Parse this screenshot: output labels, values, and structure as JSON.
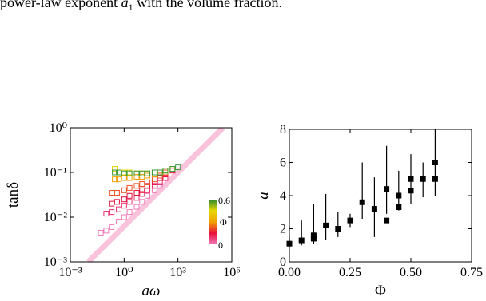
{
  "caption": {
    "lead": "power-law exponent ",
    "symbol": "a",
    "subscript": "1",
    "tail": " with the volume fraction."
  },
  "chart_data": [
    {
      "type": "scatter",
      "x_label": "aω",
      "y_label": "tanδ",
      "log_x": true,
      "log_y": true,
      "xlim": [
        0.001,
        1000000
      ],
      "ylim": [
        0.001,
        1
      ],
      "xticks": [
        {
          "value": 0.001,
          "label": "10⁻³"
        },
        {
          "value": 1,
          "label": "10⁰"
        },
        {
          "value": 1000,
          "label": "10³"
        },
        {
          "value": 1000000,
          "label": "10⁶"
        }
      ],
      "yticks": [
        {
          "value": 0.001,
          "label": "10⁻³"
        },
        {
          "value": 0.01,
          "label": "10⁻²"
        },
        {
          "value": 0.1,
          "label": "10⁻¹"
        },
        {
          "value": 1,
          "label": "10⁰"
        }
      ],
      "reference_line": {
        "x": [
          0.01,
          316228
        ],
        "y": [
          0.001,
          1
        ],
        "color": "#f9c3dc"
      },
      "colorbar": {
        "label": "Φ",
        "lim": [
          0,
          0.6
        ],
        "ticks": [
          0,
          0.6
        ],
        "colors": [
          "#f07ab8",
          "#e8103a",
          "#f0a000",
          "#e8d800",
          "#2e8b2e"
        ]
      },
      "series": [
        {
          "color": "#f07ab8",
          "x": [
            0.05,
            0.1,
            0.2,
            0.5,
            1,
            2,
            5,
            10,
            20,
            50,
            100
          ],
          "values": [
            0.0045,
            0.005,
            0.006,
            0.008,
            0.01,
            0.013,
            0.017,
            0.022,
            0.03,
            0.04,
            0.05
          ]
        },
        {
          "color": "#e83070",
          "x": [
            0.1,
            0.2,
            0.5,
            1,
            2,
            5,
            10,
            20,
            50,
            100,
            200
          ],
          "values": [
            0.012,
            0.013,
            0.015,
            0.018,
            0.022,
            0.027,
            0.033,
            0.04,
            0.05,
            0.06,
            0.075
          ]
        },
        {
          "color": "#e0103a",
          "x": [
            0.2,
            0.4,
            1,
            2,
            5,
            10,
            20,
            50,
            100,
            200,
            500
          ],
          "values": [
            0.02,
            0.022,
            0.025,
            0.03,
            0.035,
            0.04,
            0.05,
            0.06,
            0.075,
            0.09,
            0.11
          ]
        },
        {
          "color": "#f05020",
          "x": [
            0.2,
            0.4,
            1,
            2,
            5,
            10,
            20,
            50,
            100,
            200,
            500
          ],
          "values": [
            0.035,
            0.035,
            0.04,
            0.045,
            0.05,
            0.055,
            0.06,
            0.07,
            0.085,
            0.1,
            0.12
          ]
        },
        {
          "color": "#f0a000",
          "x": [
            0.3,
            0.5,
            1,
            2,
            5,
            10,
            20,
            50,
            100,
            200,
            500
          ],
          "values": [
            0.07,
            0.07,
            0.075,
            0.075,
            0.08,
            0.08,
            0.085,
            0.09,
            0.1,
            0.11,
            0.12
          ]
        },
        {
          "color": "#e8d000",
          "x": [
            0.3,
            0.5,
            1,
            2,
            5,
            10,
            20,
            50,
            100,
            200,
            500
          ],
          "values": [
            0.12,
            0.1,
            0.1,
            0.1,
            0.095,
            0.095,
            0.095,
            0.1,
            0.1,
            0.11,
            0.12
          ]
        },
        {
          "color": "#3a9a3a",
          "x": [
            0.3,
            0.5,
            1,
            2,
            5,
            10,
            20,
            50,
            100,
            200,
            500,
            1000
          ],
          "values": [
            0.1,
            0.1,
            0.095,
            0.095,
            0.095,
            0.095,
            0.095,
            0.1,
            0.1,
            0.11,
            0.12,
            0.13
          ]
        }
      ]
    },
    {
      "type": "errorbar",
      "x_label": "Φ",
      "y_label": "a",
      "xlim": [
        0,
        0.75
      ],
      "ylim": [
        0,
        8
      ],
      "xticks": [
        {
          "value": 0,
          "label": "0.00"
        },
        {
          "value": 0.25,
          "label": "0.25"
        },
        {
          "value": 0.5,
          "label": "0.50"
        },
        {
          "value": 0.75,
          "label": "0.75"
        }
      ],
      "yticks": [
        0,
        2,
        4,
        6,
        8
      ],
      "series": [
        {
          "color": "#000000",
          "x": [
            0,
            0.05,
            0.1,
            0.1,
            0.15,
            0.2,
            0.25,
            0.3,
            0.35,
            0.4,
            0.4,
            0.45,
            0.45,
            0.5,
            0.5,
            0.55,
            0.6,
            0.6
          ],
          "values": [
            1.1,
            1.3,
            1.4,
            1.6,
            2.2,
            2.0,
            2.5,
            3.6,
            3.2,
            4.4,
            2.5,
            4.0,
            3.3,
            5.0,
            4.3,
            5.0,
            6.0,
            5.0
          ],
          "low": [
            0.8,
            1.0,
            1.1,
            null,
            1.3,
            1.5,
            2.1,
            2.6,
            1.5,
            2.9,
            null,
            3.1,
            null,
            3.5,
            null,
            3.9,
            4.0,
            null
          ],
          "high": [
            1.5,
            2.5,
            3.5,
            null,
            4.1,
            3.0,
            2.9,
            6.0,
            5.1,
            7.0,
            null,
            5.5,
            null,
            6.5,
            null,
            6.0,
            8.0,
            null
          ]
        }
      ]
    }
  ]
}
